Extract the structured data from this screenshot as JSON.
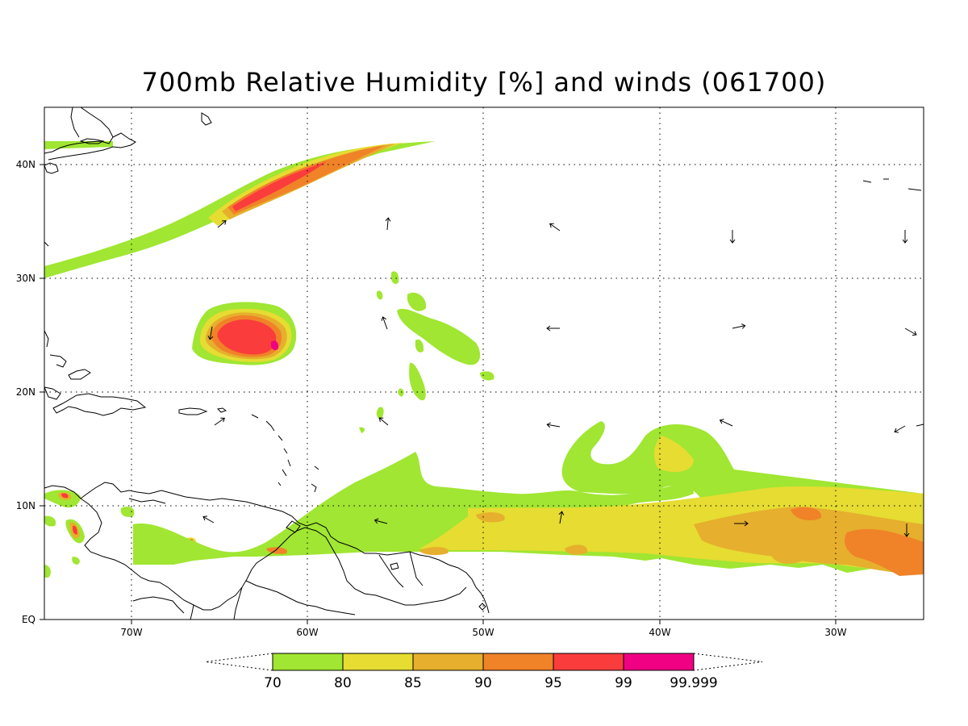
{
  "title": "700mb Relative Humidity [%] and winds (061700)",
  "axes": {
    "lat_labels": [
      "EQ",
      "10N",
      "20N",
      "30N",
      "40N"
    ],
    "lon_labels": [
      "70W",
      "60W",
      "50W",
      "40W",
      "30W"
    ]
  },
  "colorbar": {
    "levels": [
      "70",
      "80",
      "85",
      "90",
      "95",
      "99",
      "99.999"
    ],
    "colors": [
      "#a0e632",
      "#e6dc32",
      "#e6af2d",
      "#f08228",
      "#fa3c3c",
      "#f00082"
    ]
  },
  "colors": {
    "frame": "#000000",
    "background": "#ffffff"
  }
}
